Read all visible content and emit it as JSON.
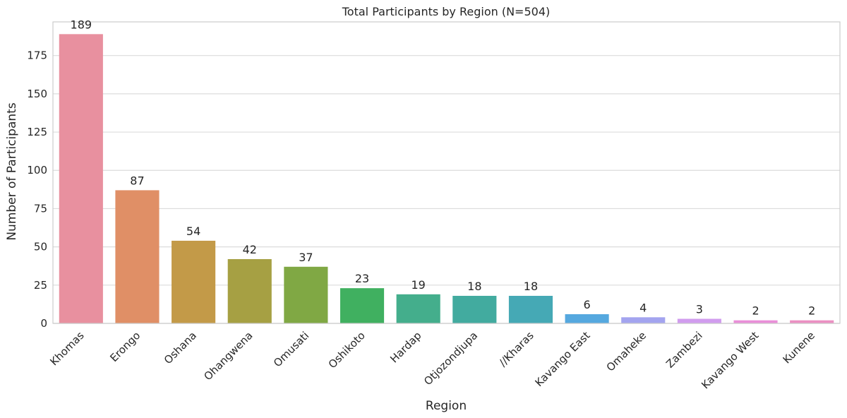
{
  "chart_data": {
    "type": "bar",
    "title": "Total Participants by Region (N=504)",
    "xlabel": "Region",
    "ylabel": "Number of Participants",
    "categories": [
      "Khomas",
      "Erongo",
      "Oshana",
      "Ohangwena",
      "Omusati",
      "Oshikoto",
      "Hardap",
      "Otjozondjupa",
      "//Kharas",
      "Kavango East",
      "Omaheke",
      "Zambezi",
      "Kavango West",
      "Kunene"
    ],
    "values": [
      189,
      87,
      54,
      42,
      37,
      23,
      19,
      18,
      18,
      6,
      4,
      3,
      2,
      2
    ],
    "colors": [
      "#e8909f",
      "#e08f66",
      "#c39a48",
      "#a6a043",
      "#80a844",
      "#40b060",
      "#44ae8c",
      "#42ab9f",
      "#45a9b5",
      "#55a8df",
      "#a3a4ef",
      "#d19cee",
      "#e98ed8",
      "#eb8fc2"
    ],
    "ylim": [
      0,
      197
    ],
    "yticks": [
      0,
      25,
      50,
      75,
      100,
      125,
      150,
      175
    ],
    "grid": true,
    "data_labels": true,
    "legend": "none"
  }
}
